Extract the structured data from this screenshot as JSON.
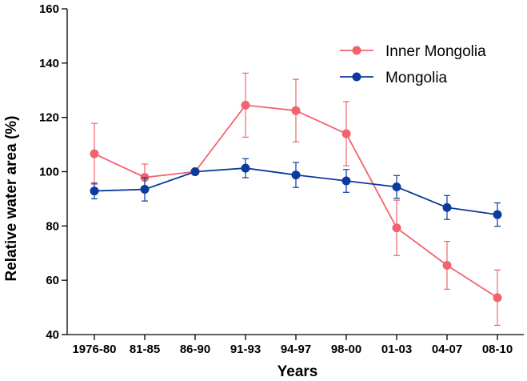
{
  "chart_data": {
    "type": "line",
    "title": "",
    "xlabel": "Years",
    "ylabel": "Relative water area (%)",
    "categories": [
      "1976-80",
      "81-85",
      "86-90",
      "91-93",
      "94-97",
      "98-00",
      "01-03",
      "04-07",
      "08-10"
    ],
    "ylim": [
      40,
      160
    ],
    "yticks": [
      40,
      60,
      80,
      100,
      120,
      140,
      160
    ],
    "grid": false,
    "legend_position": "top-right",
    "series": [
      {
        "name": "Inner Mongolia",
        "color": "#f0646e",
        "values": [
          106.6,
          97.9,
          100,
          124.5,
          122.5,
          114,
          79.3,
          65.5,
          53.6
        ],
        "error": [
          11.2,
          4.9,
          0,
          11.8,
          11.5,
          11.8,
          10.2,
          8.8,
          10.2
        ]
      },
      {
        "name": "Mongolia",
        "color": "#0d3a9e",
        "values": [
          92.9,
          93.5,
          100,
          101.3,
          98.8,
          96.6,
          94.4,
          86.8,
          84.2
        ],
        "error": [
          2.9,
          4.3,
          0,
          3.5,
          4.6,
          4.2,
          4.2,
          4.4,
          4.3
        ]
      }
    ]
  }
}
